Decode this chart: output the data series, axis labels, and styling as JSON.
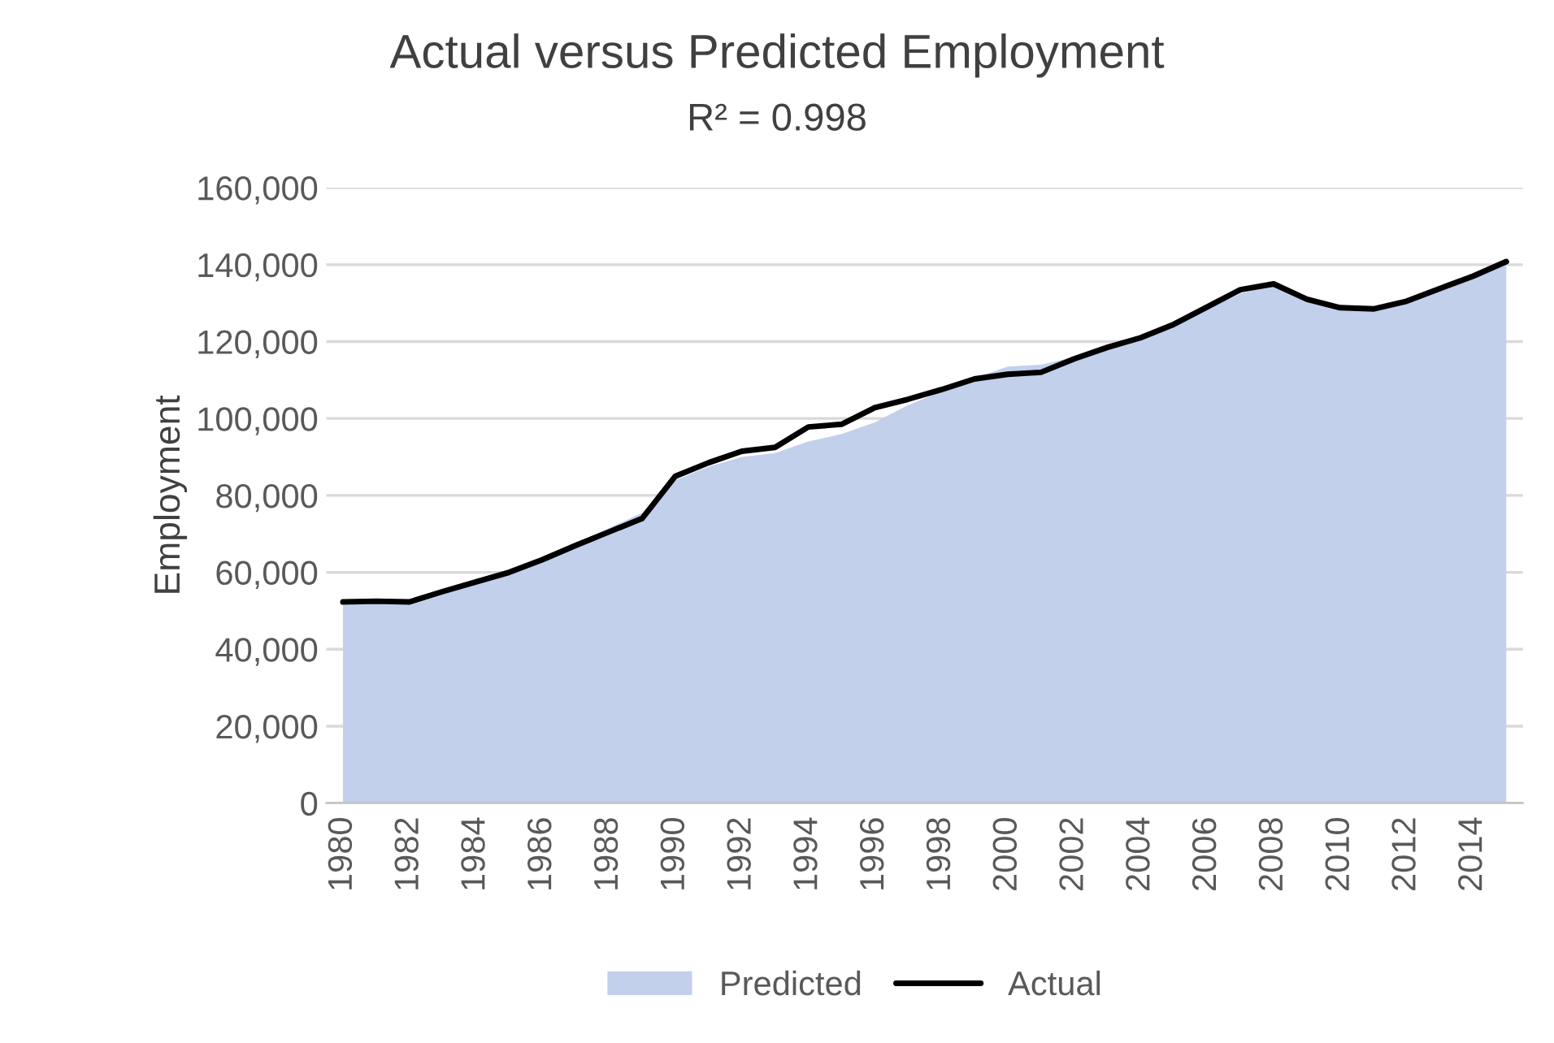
{
  "chart_data": {
    "type": "area",
    "title": "Actual versus Predicted Employment",
    "subtitle": "R² = 0.998",
    "ylabel": "Employment",
    "categories": [
      "1980",
      null,
      "1982",
      null,
      "1984",
      null,
      "1986",
      null,
      "1988",
      null,
      "1990",
      null,
      "1992",
      null,
      "1994",
      null,
      "1996",
      null,
      "1998",
      null,
      "2000",
      null,
      "2002",
      null,
      "2004",
      null,
      "2006",
      null,
      "2008",
      null,
      "2010",
      null,
      "2012",
      null,
      "2014",
      null
    ],
    "series": [
      {
        "name": "Predicted",
        "color": "#c3d0ec",
        "values": [
          51500,
          52000,
          52500,
          55000,
          57500,
          60300,
          63500,
          67500,
          71500,
          75500,
          84000,
          87500,
          90000,
          91000,
          94000,
          96000,
          99000,
          103500,
          107000,
          110500,
          113500,
          114000,
          116000,
          118500,
          121000,
          124000,
          128500,
          132500,
          134500,
          131000,
          129000,
          128500,
          130500,
          133500,
          136500,
          140000
        ]
      },
      {
        "name": "Actual",
        "type": "line",
        "color": "#000000",
        "values": [
          52300,
          52500,
          52300,
          55000,
          57500,
          60000,
          63300,
          67000,
          70500,
          74000,
          85000,
          88500,
          91500,
          92500,
          97800,
          98500,
          102800,
          105000,
          107500,
          110300,
          111500,
          112000,
          115500,
          118500,
          121000,
          124500,
          129000,
          133500,
          135000,
          131000,
          128800,
          128500,
          130500,
          133800,
          137000,
          140800
        ]
      }
    ],
    "ylim": [
      0,
      160000
    ],
    "yticks": [
      {
        "value": 0,
        "label": "0"
      },
      {
        "value": 20000,
        "label": "20,000"
      },
      {
        "value": 40000,
        "label": "40,000"
      },
      {
        "value": 60000,
        "label": "60,000"
      },
      {
        "value": 80000,
        "label": "80,000"
      },
      {
        "value": 100000,
        "label": "100,000"
      },
      {
        "value": 120000,
        "label": "120,000"
      },
      {
        "value": 140000,
        "label": "140,000"
      },
      {
        "value": 160000,
        "label": "160,000"
      }
    ],
    "grid": "y",
    "legend": "bottom"
  }
}
